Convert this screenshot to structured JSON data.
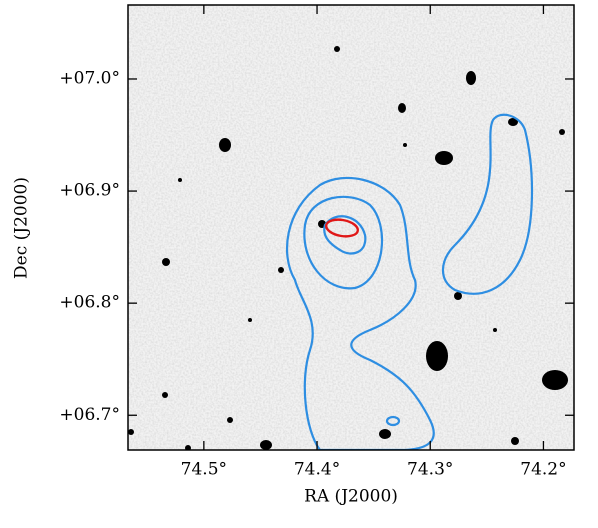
{
  "chart_data": {
    "type": "image",
    "xlabel": "RA (J2000)",
    "ylabel": "Dec (J2000)",
    "xlim": [
      74.567,
      74.173
    ],
    "ylim": [
      6.669,
      7.066
    ],
    "xticks": [
      {
        "value": 74.5,
        "label": "74.5°"
      },
      {
        "value": 74.4,
        "label": "74.4°"
      },
      {
        "value": 74.3,
        "label": "74.3°"
      },
      {
        "value": 74.2,
        "label": "74.2°"
      }
    ],
    "yticks": [
      {
        "value": 7.0,
        "label": "+07.0°"
      },
      {
        "value": 6.9,
        "label": "+06.9°"
      },
      {
        "value": 6.8,
        "label": "+06.8°"
      },
      {
        "value": 6.7,
        "label": "+06.7°"
      }
    ]
  }
}
